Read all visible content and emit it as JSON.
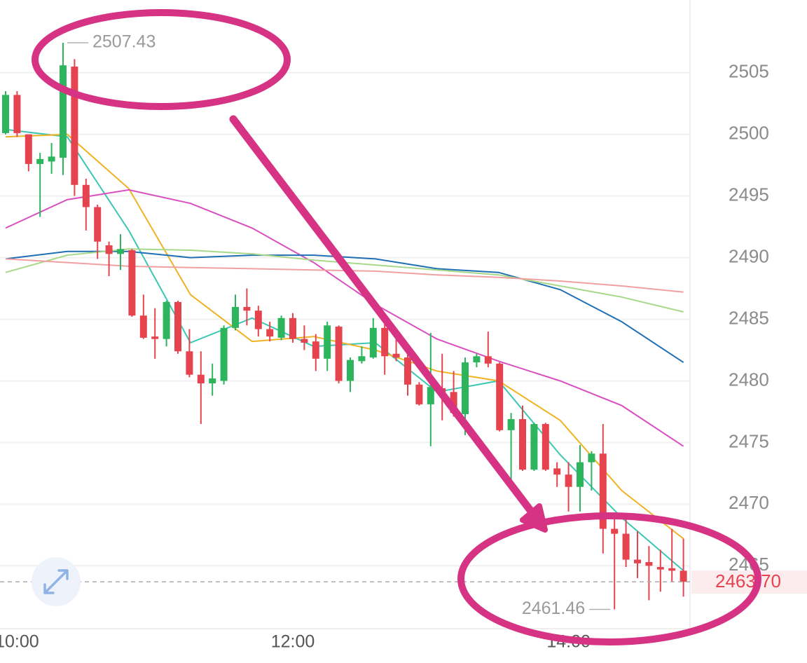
{
  "chart_data": {
    "type": "candlestick",
    "categories": [
      null,
      "10:00",
      null,
      null,
      null,
      null,
      null,
      null,
      null,
      null,
      null,
      null,
      null,
      null,
      null,
      null,
      null,
      null,
      null,
      null,
      null,
      null,
      null,
      null,
      null,
      "12:00",
      null,
      null,
      null,
      null,
      null,
      null,
      null,
      null,
      null,
      null,
      null,
      null,
      null,
      null,
      null,
      null,
      null,
      null,
      null,
      null,
      null,
      null,
      null,
      "14:00",
      null,
      null,
      null,
      null,
      null,
      null,
      null,
      null,
      null,
      null
    ],
    "open": [
      2500.1,
      2503.2,
      2500.0,
      2497.6,
      2497.8,
      2498.1,
      2505.5,
      2495.9,
      2494.1,
      2491.0,
      2490.3,
      2490.6,
      2485.3,
      2483.6,
      2483.4,
      2486.4,
      2482.4,
      2480.5,
      2479.8,
      2480.0,
      2484.3,
      2486.0,
      2485.7,
      2484.2,
      2483.5,
      2485.1,
      2483.4,
      2483.2,
      2481.8,
      2484.4,
      2480.0,
      2481.6,
      2481.9,
      2484.3,
      2482.2,
      2481.9,
      2479.7,
      2478.1,
      2479.4,
      2479.1,
      2477.3,
      2481.5,
      2482.0,
      2481.4,
      2476.0,
      2476.9,
      2472.8,
      2476.5,
      2472.9,
      2472.4,
      2471.4,
      2473.4,
      2474.1,
      2468.0,
      2467.6,
      2465.5,
      2465.3,
      2464.9,
      2464.8,
      2464.6
    ],
    "high": [
      2503.5,
      2503.5,
      2500.0,
      2498.5,
      2499.3,
      2507.43,
      2506.1,
      2496.4,
      2494.3,
      2491.3,
      2491.9,
      2490.7,
      2487.0,
      2485.9,
      2486.5,
      2486.5,
      2484.2,
      2482.4,
      2481.4,
      2484.5,
      2487.0,
      2487.5,
      2486.1,
      2484.8,
      2485.3,
      2485.5,
      2484.5,
      2483.8,
      2484.8,
      2484.5,
      2481.9,
      2482.8,
      2485.1,
      2484.7,
      2483.9,
      2482.2,
      2479.9,
      2483.9,
      2482.2,
      2480.8,
      2481.9,
      2482.2,
      2484.0,
      2481.5,
      2477.4,
      2478.0,
      2476.6,
      2476.6,
      2473.4,
      2473.4,
      2474.8,
      2474.3,
      2476.5,
      2468.9,
      2468.8,
      2467.8,
      2466.6,
      2466.3,
      2468.0,
      2467.2
    ],
    "low": [
      2500.0,
      2499.8,
      2497.0,
      2493.3,
      2496.8,
      2496.7,
      2495.0,
      2492.2,
      2489.9,
      2488.5,
      2489.0,
      2485.2,
      2483.4,
      2481.8,
      2482.8,
      2482.2,
      2480.3,
      2476.5,
      2478.8,
      2479.7,
      2484.1,
      2484.5,
      2483.6,
      2483.2,
      2483.3,
      2483.1,
      2482.5,
      2480.8,
      2480.8,
      2479.8,
      2479.1,
      2481.4,
      2481.8,
      2480.5,
      2481.6,
      2478.8,
      2478.0,
      2474.7,
      2476.8,
      2477.1,
      2475.6,
      2481.1,
      2481.1,
      2475.9,
      2472.0,
      2472.7,
      2472.7,
      2472.7,
      2471.4,
      2469.4,
      2469.4,
      2471.1,
      2466.0,
      2461.46,
      2464.9,
      2464.0,
      2462.2,
      2462.9,
      2463.7,
      2462.5
    ],
    "close": [
      2503.2,
      2500.1,
      2497.6,
      2498.0,
      2498.2,
      2505.6,
      2495.9,
      2494.1,
      2491.3,
      2490.3,
      2490.7,
      2485.3,
      2483.5,
      2483.4,
      2486.4,
      2482.4,
      2480.5,
      2479.8,
      2480.2,
      2484.3,
      2486.0,
      2485.7,
      2484.2,
      2483.6,
      2485.1,
      2483.4,
      2483.1,
      2481.8,
      2484.5,
      2480.0,
      2481.7,
      2482.0,
      2484.3,
      2482.0,
      2481.9,
      2479.7,
      2478.1,
      2479.5,
      2479.1,
      2477.4,
      2481.5,
      2482.0,
      2481.4,
      2476.0,
      2476.9,
      2472.8,
      2476.5,
      2472.8,
      2472.4,
      2471.4,
      2473.4,
      2474.1,
      2468.0,
      2467.6,
      2465.5,
      2465.2,
      2465.0,
      2464.7,
      2464.6,
      2463.7
    ],
    "up_color": "#2db55d",
    "down_color": "#e5444f",
    "lines": [
      {
        "color": "#3cc6b4",
        "values": [
          2500.4,
          2499.8,
          2492.2,
          2483.1,
          2485.1,
          2482.8,
          2483.1,
          2479.1,
          2480.0,
          2474.0,
          2468.9,
          2464.6
        ]
      },
      {
        "color": "#f0b323",
        "values": [
          2499.8,
          2500.0,
          2495.6,
          2487.0,
          2483.2,
          2483.6,
          2482.5,
          2480.8,
          2480.0,
          2476.8,
          2471.1,
          2467.2
        ]
      },
      {
        "color": "#d94fc0",
        "values": [
          2492.4,
          2494.7,
          2495.5,
          2494.4,
          2492.4,
          2489.6,
          2486.2,
          2483.4,
          2481.6,
          2480.0,
          2478.0,
          2474.7
        ]
      },
      {
        "color": "#1f6fb5",
        "values": [
          2489.9,
          2490.5,
          2490.5,
          2490.0,
          2490.2,
          2490.2,
          2489.9,
          2489.1,
          2488.8,
          2487.4,
          2484.8,
          2481.5
        ]
      },
      {
        "color": "#a8d98a",
        "values": [
          2488.8,
          2490.2,
          2490.7,
          2490.6,
          2490.3,
          2489.8,
          2489.4,
          2489.0,
          2488.6,
          2487.7,
          2486.8,
          2485.6
        ]
      },
      {
        "color": "#f0a0a0",
        "values": [
          2489.9,
          2489.6,
          2489.3,
          2489.2,
          2489.1,
          2489.0,
          2488.9,
          2488.6,
          2488.4,
          2488.1,
          2487.7,
          2487.2
        ]
      }
    ],
    "ylim": [
      2459.9,
      2510.9
    ],
    "yticks": [
      2465,
      2470,
      2475,
      2480,
      2485,
      2490,
      2495,
      2500,
      2505
    ],
    "grid": true,
    "last_price": {
      "value": 2463.7,
      "label": "2463.70"
    }
  }
}
